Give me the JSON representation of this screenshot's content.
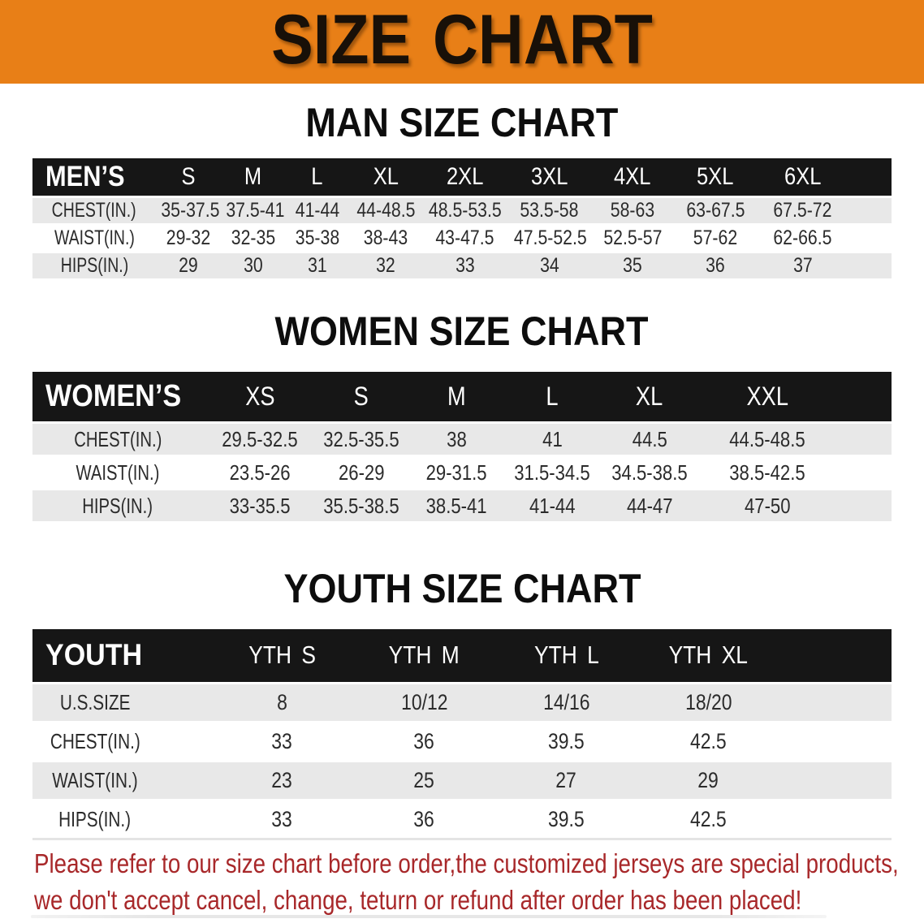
{
  "banner": {
    "title": "SIZE CHART"
  },
  "tables": {
    "men": {
      "name": "men",
      "heading": "MAN SIZE CHART",
      "title": "MEN’S",
      "sizes": [
        "S",
        "M",
        "L",
        "XL",
        "2XL",
        "3XL",
        "4XL",
        "5XL",
        "6XL"
      ],
      "rows": [
        {
          "label": "CHEST(IN.)",
          "values": [
            "35-37.5",
            "37.5-41",
            "41-44",
            "44-48.5",
            "48.5-53.5",
            "53.5-58",
            "58-63",
            "63-67.5",
            "67.5-72"
          ]
        },
        {
          "label": "WAIST(IN.)",
          "values": [
            "29-32",
            "32-35",
            "35-38",
            "38-43",
            "43-47.5",
            "47.5-52.5",
            "52.5-57",
            "57-62",
            "62-66.5"
          ]
        },
        {
          "label": "HIPS(IN.)",
          "values": [
            "29",
            "30",
            "31",
            "32",
            "33",
            "34",
            "35",
            "36",
            "37"
          ]
        }
      ]
    },
    "women": {
      "name": "women",
      "heading": "WOMEN SIZE CHART",
      "title": "WOMEN’S",
      "sizes": [
        "XS",
        "S",
        "M",
        "L",
        "XL",
        "XXL"
      ],
      "rows": [
        {
          "label": "CHEST(IN.)",
          "values": [
            "29.5-32.5",
            "32.5-35.5",
            "38",
            "41",
            "44.5",
            "44.5-48.5"
          ]
        },
        {
          "label": "WAIST(IN.)",
          "values": [
            "23.5-26",
            "26-29",
            "29-31.5",
            "31.5-34.5",
            "34.5-38.5",
            "38.5-42.5"
          ]
        },
        {
          "label": "HIPS(IN.)",
          "values": [
            "33-35.5",
            "35.5-38.5",
            "38.5-41",
            "41-44",
            "44-47",
            "47-50"
          ]
        }
      ]
    },
    "youth": {
      "name": "youth",
      "heading": "YOUTH SIZE CHART",
      "title": "YOUTH",
      "sizes": [
        "YTH S",
        "YTH M",
        "YTH L",
        "YTH XL"
      ],
      "rows": [
        {
          "label": "U.S.SIZE",
          "values": [
            "8",
            "10/12",
            "14/16",
            "18/20"
          ]
        },
        {
          "label": "CHEST(IN.)",
          "values": [
            "33",
            "36",
            "39.5",
            "42.5"
          ]
        },
        {
          "label": "WAIST(IN.)",
          "values": [
            "23",
            "25",
            "27",
            "29"
          ]
        },
        {
          "label": "HIPS(IN.)",
          "values": [
            "33",
            "36",
            "39.5",
            "42.5"
          ]
        }
      ]
    }
  },
  "footer": {
    "line1": "Please refer to our size chart before order,the customized jerseys are special products,",
    "line2": "we don't accept cancel, change, teturn or refund after order has been placed!"
  },
  "colors": {
    "banner_bg": "#e87f17",
    "header_bg": "#161616",
    "row_shade": "#e8e8e8",
    "notice_red": "#a8282a"
  }
}
